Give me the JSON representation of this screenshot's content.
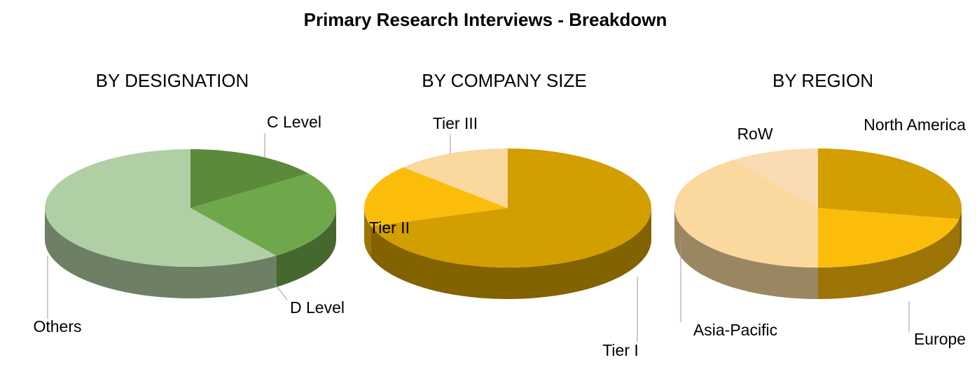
{
  "title": "Primary Research Interviews - Breakdown",
  "chart_data": [
    {
      "type": "pie",
      "title": "BY DESIGNATION",
      "categories": [
        "C Level",
        "D Level",
        "Others"
      ],
      "values": [
        15,
        25,
        60
      ],
      "colors": [
        "#5a8a3a",
        "#6fa84a",
        "#b0cfa4"
      ]
    },
    {
      "type": "pie",
      "title": "BY COMPANY SIZE",
      "categories": [
        "Tier I",
        "Tier II",
        "Tier III"
      ],
      "values": [
        70,
        17,
        13
      ],
      "colors": [
        "#d39e00",
        "#fbbd0a",
        "#fad89e"
      ]
    },
    {
      "type": "pie",
      "title": "BY REGION",
      "categories": [
        "North America",
        "Europe",
        "Asia-Pacific",
        "RoW"
      ],
      "values": [
        28,
        22,
        40,
        10
      ],
      "colors": [
        "#d39e00",
        "#fbbd0a",
        "#fad89e",
        "#f9dcb4"
      ]
    }
  ]
}
